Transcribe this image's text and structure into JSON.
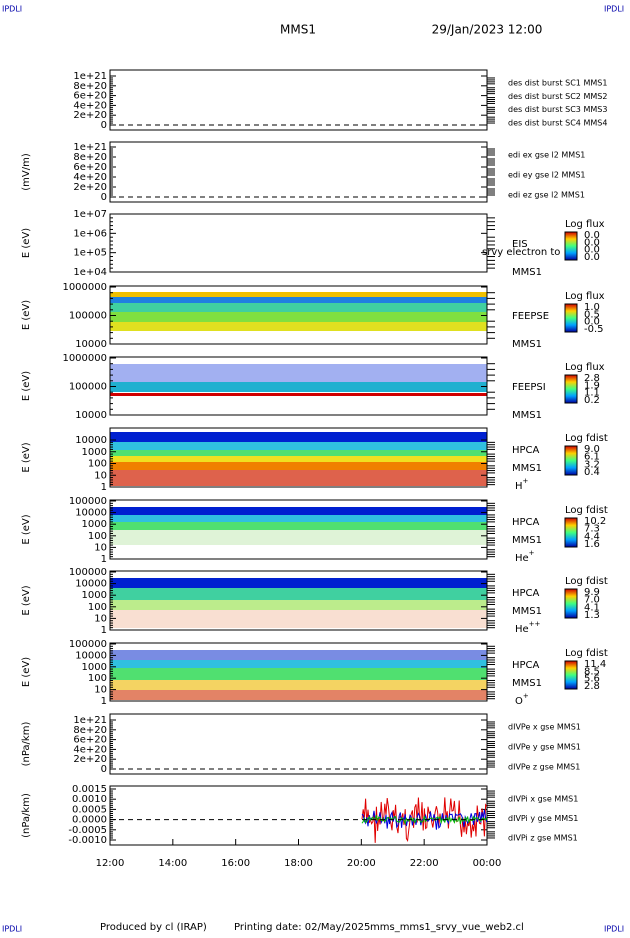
{
  "header": {
    "left": "IPDLI",
    "right": "IPDLI",
    "title": "MMS1",
    "date": "29/Jan/2023 12:00"
  },
  "panels": [
    {
      "ylabel": "",
      "yticks": [
        "1e+21",
        "8e+20",
        "6e+20",
        "4e+20",
        "2e+20",
        "0"
      ],
      "legend": [
        {
          "text": "des dist burst SC1 MMS1",
          "color": "#0000cc"
        },
        {
          "text": "des dist burst SC2 MMS2",
          "color": "#dd00dd"
        },
        {
          "text": "des dist burst SC3 MMS3",
          "color": "#dd0000"
        },
        {
          "text": "des dist burst SC4 MMS4",
          "color": "#00cc00"
        }
      ]
    },
    {
      "ylabel": "(mV/m)",
      "yticks": [
        "1e+21",
        "8e+20",
        "6e+20",
        "4e+20",
        "2e+20",
        "0"
      ],
      "legend": [
        {
          "text": "edi ex gse l2 MMS1",
          "color": "#dd0000"
        },
        {
          "text": "edi ey gse l2 MMS1",
          "color": "#00cc00"
        },
        {
          "text": "edi ez gse l2 MMS1",
          "color": "#0000cc"
        }
      ]
    },
    {
      "ylabel": "E (eV)",
      "yticks": [
        "1e+07",
        "1e+06",
        "1e+05",
        "1e+04"
      ],
      "labels": [
        "EIS",
        "MMS1"
      ],
      "overlay": "srvy electron to",
      "colorbar": {
        "title": "Log flux",
        "ticks": [
          "0.0",
          "0.0",
          "0.0",
          "0.0"
        ]
      }
    },
    {
      "ylabel": "E (eV)",
      "yticks": [
        "1000000",
        "100000",
        "10000"
      ],
      "labels": [
        "FEEPSE",
        "MMS1"
      ],
      "colorbar": {
        "title": "Log flux",
        "ticks": [
          "1.0",
          "0.5",
          "0.0",
          "-0.5"
        ]
      }
    },
    {
      "ylabel": "E (eV)",
      "yticks": [
        "1000000",
        "100000",
        "10000"
      ],
      "labels": [
        "FEEPSI",
        "MMS1"
      ],
      "colorbar": {
        "title": "Log flux",
        "ticks": [
          "2.8",
          "1.9",
          "1.1",
          "0.2"
        ]
      }
    },
    {
      "ylabel": "E (eV)",
      "yticks": [
        "10000",
        "1000",
        "100",
        "10",
        "1"
      ],
      "labels": [
        "HPCA",
        "MMS1"
      ],
      "species": {
        "base": "H",
        "sup": "+"
      },
      "colorbar": {
        "title": "Log fdist",
        "ticks": [
          "9.0",
          "6.1",
          "3.2",
          "0.4"
        ]
      }
    },
    {
      "ylabel": "E (eV)",
      "yticks": [
        "100000",
        "10000",
        "1000",
        "100",
        "10",
        "1"
      ],
      "labels": [
        "HPCA",
        "MMS1"
      ],
      "species": {
        "base": "He",
        "sup": "+"
      },
      "colorbar": {
        "title": "Log fdist",
        "ticks": [
          "10.2",
          "7.3",
          "4.4",
          "1.6"
        ]
      }
    },
    {
      "ylabel": "E (eV)",
      "yticks": [
        "100000",
        "10000",
        "1000",
        "100",
        "10",
        "1"
      ],
      "labels": [
        "HPCA",
        "MMS1"
      ],
      "species": {
        "base": "He",
        "sup": "++"
      },
      "colorbar": {
        "title": "Log fdist",
        "ticks": [
          "9.9",
          "7.0",
          "4.1",
          "1.3"
        ]
      }
    },
    {
      "ylabel": "E (eV)",
      "yticks": [
        "100000",
        "10000",
        "1000",
        "100",
        "10",
        "1"
      ],
      "labels": [
        "HPCA",
        "MMS1"
      ],
      "species": {
        "base": "O",
        "sup": "+"
      },
      "colorbar": {
        "title": "Log fdist",
        "ticks": [
          "11.4",
          "8.5",
          "5.6",
          "2.8"
        ]
      }
    },
    {
      "ylabel": "(nPa/km)",
      "yticks": [
        "1e+21",
        "8e+20",
        "6e+20",
        "4e+20",
        "2e+20",
        "0"
      ],
      "legend": [
        {
          "text": "dIVPe x gse MMS1",
          "color": "#dd0000"
        },
        {
          "text": "dIVPe y gse MMS1",
          "color": "#00cc00"
        },
        {
          "text": "dIVPe z gse MMS1",
          "color": "#0000cc"
        }
      ]
    },
    {
      "ylabel": "(nPa/km)",
      "yticks": [
        "0.0015",
        "0.0010",
        "0.0005",
        "0.0000",
        "-0.0005",
        "-0.0010"
      ],
      "legend": [
        {
          "text": "dIVPi x gse MMS1",
          "color": "#dd0000"
        },
        {
          "text": "dIVPi y gse MMS1",
          "color": "#00cc00"
        },
        {
          "text": "dIVPi z gse MMS1",
          "color": "#0000cc"
        }
      ]
    }
  ],
  "xticks": [
    "12:00",
    "14:00",
    "16:00",
    "18:00",
    "20:00",
    "22:00",
    "00:00"
  ],
  "footer": {
    "left": "IPDLI",
    "right": "IPDLI",
    "credit": "Produced by cl (IRAP)",
    "printed": "Printing date: 02/May/2025",
    "file": "mms_mms1_srvy_vue_web2.cl"
  }
}
